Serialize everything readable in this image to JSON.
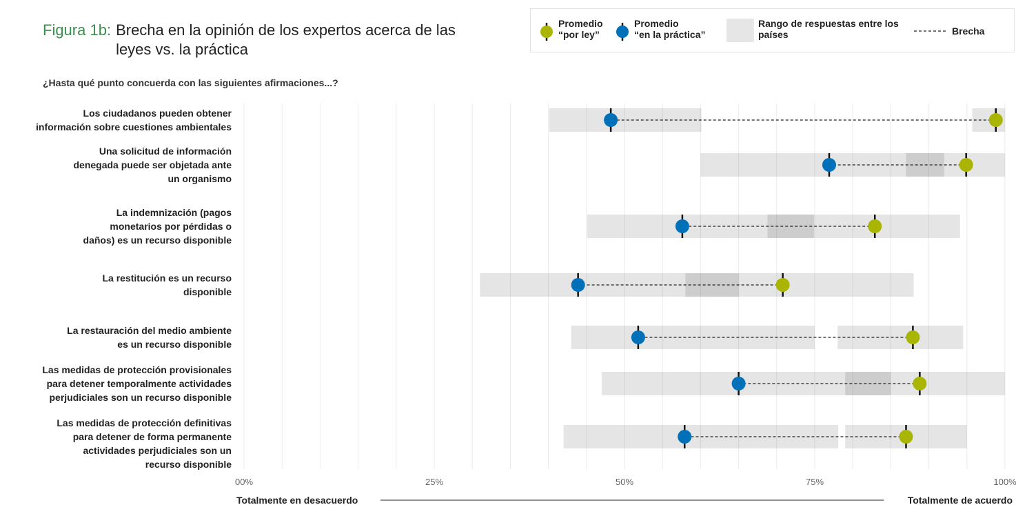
{
  "chart_data": {
    "type": "dumbbell",
    "figure_label": "Figura 1b:",
    "title": "Brecha en la opinión de los expertos acerca de las leyes vs. la práctica",
    "subtitle": "¿Hasta qué punto concuerda con las siguientes afirmaciones...?",
    "categories": [
      [
        "Los ciudadanos pueden obtener",
        "información sobre cuestiones ambientales"
      ],
      [
        "Una solicitud de información",
        "denegada puede ser objetada ante",
        "un organismo"
      ],
      [
        "La indemnización (pagos",
        "monetarios por pérdidas o",
        "daños) es un recurso disponible"
      ],
      [
        "La restitución es un recurso",
        "disponible"
      ],
      [
        "La restauración del medio ambiente",
        "es un recurso disponible"
      ],
      [
        "Las medidas de protección provisionales",
        "para detener temporalmente actividades",
        "perjudiciales son un recurso disponible"
      ],
      [
        "Las medidas de protección definitivas",
        "para detener de forma permanente",
        "actividades perjudiciales son un",
        "recurso disponible"
      ]
    ],
    "series": [
      {
        "name": "Promedio “por ley”",
        "color": "#a9b500",
        "values": [
          98.8,
          94.9,
          82.9,
          70.8,
          87.9,
          88.8,
          87.0
        ],
        "ranges": [
          [
            95.7,
            100
          ],
          [
            87,
            100
          ],
          [
            68.8,
            94.1
          ],
          [
            58,
            88
          ],
          [
            78,
            94.5
          ],
          [
            79,
            100
          ],
          [
            79,
            95
          ]
        ]
      },
      {
        "name": "Promedio “en la práctica”",
        "color": "#0071b9",
        "values": [
          48.2,
          76.9,
          57.6,
          43.9,
          51.8,
          65.0,
          57.9
        ],
        "ranges": [
          [
            40.1,
            60.1
          ],
          [
            60,
            92
          ],
          [
            45.1,
            74.9
          ],
          [
            31,
            65
          ],
          [
            43,
            75
          ],
          [
            47,
            85
          ],
          [
            42,
            78.1
          ]
        ]
      }
    ],
    "range_name": "Rango de respuestas entre los países",
    "gap_name": "Brecha",
    "xlim": [
      0,
      100
    ],
    "xticks": [
      {
        "value": 0,
        "label": "00%"
      },
      {
        "value": 25,
        "label": "25%"
      },
      {
        "value": 50,
        "label": "50%"
      },
      {
        "value": 75,
        "label": "75%"
      },
      {
        "value": 100,
        "label": "100%"
      }
    ],
    "minor_xticks": [
      5,
      10,
      15,
      20,
      30,
      35,
      40,
      45,
      55,
      60,
      65,
      70,
      80,
      85,
      90,
      95
    ],
    "x_left_label": "Totalmente en desacuerdo",
    "x_right_label": "Totalmente de acuerdo"
  }
}
